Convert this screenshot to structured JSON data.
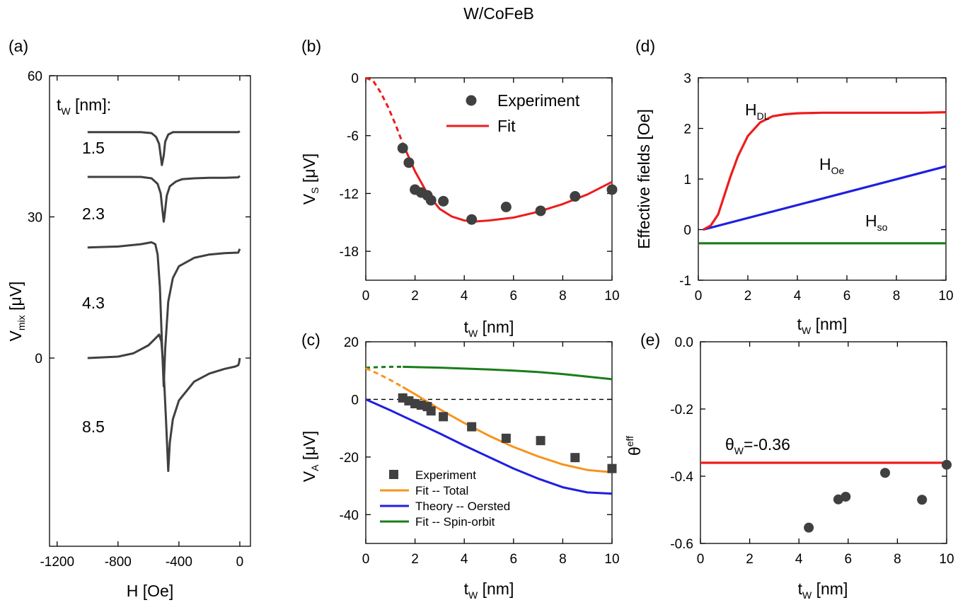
{
  "figure_title": "W/CoFeB",
  "colors": {
    "experiment": "#404040",
    "red": "#ee1c1c",
    "orange": "#f7941d",
    "blue": "#1f1fe0",
    "green": "#1a7d1a",
    "curve_a": "#404040"
  },
  "chart_data": [
    {
      "id": "a",
      "type": "line",
      "panel_label": "(a)",
      "xlabel_main": "H [Oe]",
      "ylabel_main": "V",
      "ylabel_sub": "mix",
      "ylabel_unit": " [μV]",
      "xlim": [
        -1250,
        70
      ],
      "ylim": [
        -40,
        60
      ],
      "xticks": [
        -1200,
        -800,
        -400,
        0
      ],
      "xtick_labels": [
        "-1200",
        "-800",
        "-400",
        "0"
      ],
      "yticks": [
        0,
        30,
        60
      ],
      "ytick_labels": [
        "0",
        "30",
        "60"
      ],
      "header_main": "t",
      "header_sub": "W",
      "header_tail": " [nm]:",
      "series": [
        {
          "label": "1.5",
          "x": [
            -1000,
            -800,
            -650,
            -580,
            -550,
            -530,
            -520,
            -512,
            -500,
            -490,
            -470,
            -440,
            -400,
            -300,
            -200,
            -100,
            -10,
            0
          ],
          "y": [
            48,
            48,
            48,
            47.8,
            47,
            45.5,
            43,
            41,
            43,
            46,
            47.5,
            48,
            48,
            48,
            48,
            48,
            48,
            48.2
          ]
        },
        {
          "label": "2.3",
          "x": [
            -1000,
            -800,
            -650,
            -580,
            -540,
            -520,
            -510,
            -500,
            -495,
            -480,
            -460,
            -420,
            -380,
            -300,
            -200,
            -100,
            -10,
            0
          ],
          "y": [
            38.5,
            38.5,
            38.5,
            38.2,
            37,
            35,
            32,
            29,
            30,
            34.5,
            36.5,
            37.5,
            38,
            38.2,
            38.3,
            38.3,
            38.4,
            38.7
          ]
        },
        {
          "label": "4.3",
          "x": [
            -1000,
            -800,
            -650,
            -580,
            -555,
            -540,
            -525,
            -510,
            -500,
            -490,
            -470,
            -440,
            -400,
            -300,
            -200,
            -100,
            -10,
            0
          ],
          "y": [
            23.5,
            23.7,
            24.2,
            24.6,
            24.2,
            22,
            15,
            2,
            -6,
            2,
            12,
            17,
            19.5,
            21.3,
            22,
            22.3,
            22.4,
            23.2
          ]
        },
        {
          "label": "8.5",
          "x": [
            -1000,
            -800,
            -700,
            -600,
            -560,
            -530,
            -515,
            -500,
            -485,
            -470,
            -460,
            -440,
            -400,
            -300,
            -200,
            -100,
            -30,
            -10,
            -5,
            0
          ],
          "y": [
            0,
            0.3,
            1,
            2.7,
            4,
            5,
            3.5,
            -3,
            -13,
            -24,
            -18,
            -13,
            -9,
            -5,
            -3.3,
            -2.3,
            -1.8,
            -1.5,
            -1,
            0
          ]
        }
      ]
    },
    {
      "id": "b",
      "type": "line",
      "panel_label": "(b)",
      "xlabel_main": "t",
      "xlabel_sub": "W",
      "xlabel_unit": " [nm]",
      "ylabel_main": "V",
      "ylabel_sub": "S",
      "ylabel_unit": " [μV]",
      "xlim": [
        0,
        10
      ],
      "ylim": [
        -21,
        0
      ],
      "xticks": [
        0,
        2,
        4,
        6,
        8,
        10
      ],
      "xtick_labels": [
        "0",
        "2",
        "4",
        "6",
        "8",
        "10"
      ],
      "yticks": [
        0,
        -6,
        -12,
        -18
      ],
      "ytick_labels": [
        "0",
        "-6",
        "-12",
        "-18"
      ],
      "legend": [
        "Experiment",
        "Fit"
      ],
      "experiment": {
        "x": [
          1.5,
          1.75,
          2.0,
          2.25,
          2.5,
          2.65,
          3.15,
          4.3,
          5.7,
          7.1,
          8.5,
          10.0
        ],
        "y": [
          -7.3,
          -8.8,
          -11.6,
          -11.9,
          -12.2,
          -12.7,
          -12.8,
          -14.7,
          -13.4,
          -13.8,
          -12.3,
          -11.6
        ]
      },
      "fit_dashed": {
        "x": [
          0,
          0.3,
          0.6,
          0.9,
          1.2,
          1.5
        ],
        "y": [
          0,
          -0.3,
          -1.5,
          -3.0,
          -4.8,
          -6.8
        ]
      },
      "fit_solid": {
        "x": [
          1.5,
          2.0,
          2.5,
          3.0,
          3.5,
          4.0,
          4.5,
          5.0,
          6.0,
          7.0,
          8.0,
          9.0,
          10.0
        ],
        "y": [
          -6.8,
          -9.7,
          -12.0,
          -13.6,
          -14.4,
          -14.8,
          -14.9,
          -14.8,
          -14.5,
          -13.9,
          -13.1,
          -12.1,
          -10.8
        ]
      }
    },
    {
      "id": "c",
      "type": "line",
      "panel_label": "(c)",
      "xlabel_main": "t",
      "xlabel_sub": "W",
      "xlabel_unit": " [nm]",
      "ylabel_main": "V",
      "ylabel_sub": "A",
      "ylabel_unit": " [μV]",
      "xlim": [
        0,
        10
      ],
      "ylim": [
        -50,
        20
      ],
      "xticks": [
        0,
        2,
        4,
        6,
        8,
        10
      ],
      "xtick_labels": [
        "0",
        "2",
        "4",
        "6",
        "8",
        "10"
      ],
      "yticks": [
        20,
        0,
        -20,
        -40
      ],
      "ytick_labels": [
        "20",
        "0",
        "-20",
        "-40"
      ],
      "legend": [
        "Experiment",
        "Fit -- Total",
        "Theory -- Oersted",
        "Fit -- Spin-orbit"
      ],
      "experiment": {
        "x": [
          1.5,
          1.75,
          2.0,
          2.25,
          2.5,
          2.65,
          3.15,
          4.3,
          5.7,
          7.1,
          8.5,
          10.0
        ],
        "y": [
          0.5,
          -0.5,
          -1.5,
          -2.0,
          -2.5,
          -4.0,
          -6.0,
          -9.5,
          -13.5,
          -14.3,
          -20.2,
          -24.0
        ]
      },
      "total_dashed": {
        "x": [
          0,
          0.5,
          1.0,
          1.5
        ],
        "y": [
          10.8,
          8.9,
          6.7,
          4.3
        ]
      },
      "total_solid": {
        "x": [
          1.5,
          2.0,
          3.0,
          4.0,
          5.0,
          6.0,
          7.0,
          8.0,
          9.0,
          10.0
        ],
        "y": [
          4.3,
          1.8,
          -3.4,
          -8.2,
          -12.6,
          -16.5,
          -19.8,
          -22.6,
          -24.5,
          -25.3
        ]
      },
      "oersted": {
        "x": [
          0,
          1,
          2,
          3,
          4,
          5,
          6,
          7,
          8,
          9,
          10
        ],
        "y": [
          0,
          -3.8,
          -7.8,
          -11.8,
          -16.0,
          -20.0,
          -24.0,
          -27.5,
          -30.5,
          -32.3,
          -32.7
        ]
      },
      "spinorbit_dashed": {
        "x": [
          0,
          0.5,
          1.0,
          1.5
        ],
        "y": [
          11,
          11.2,
          11.3,
          11.3
        ]
      },
      "spinorbit_solid": {
        "x": [
          1.5,
          3,
          4,
          5,
          6,
          7,
          8,
          9,
          10
        ],
        "y": [
          11.3,
          11.0,
          10.7,
          10.4,
          10.0,
          9.5,
          8.8,
          7.9,
          7.0
        ]
      },
      "zero_line": {
        "x": [
          0,
          10
        ],
        "y": [
          0,
          0
        ]
      }
    },
    {
      "id": "d",
      "type": "line",
      "panel_label": "(d)",
      "xlabel_main": "t",
      "xlabel_sub": "W",
      "xlabel_unit": " [nm]",
      "ylabel": "Effective fields [Oe]",
      "xlim": [
        0,
        10
      ],
      "ylim": [
        -1,
        3
      ],
      "xticks": [
        0,
        2,
        4,
        6,
        8,
        10
      ],
      "xtick_labels": [
        "0",
        "2",
        "4",
        "6",
        "8",
        "10"
      ],
      "yticks": [
        3,
        2,
        1,
        0,
        -1
      ],
      "ytick_labels": [
        "3",
        "2",
        "1",
        "0",
        "-1"
      ],
      "annotations": [
        {
          "main": "H",
          "sub": "DL"
        },
        {
          "main": "H",
          "sub": "Oe"
        },
        {
          "main": "H",
          "sub": "so"
        }
      ],
      "H_DL": {
        "x": [
          0.2,
          0.5,
          0.8,
          1.0,
          1.3,
          1.6,
          2.0,
          2.5,
          3.0,
          3.5,
          4.0,
          5.0,
          6.0,
          7.0,
          8.0,
          9.0,
          10.0
        ],
        "y": [
          0,
          0.08,
          0.3,
          0.6,
          1.05,
          1.45,
          1.85,
          2.12,
          2.24,
          2.28,
          2.3,
          2.31,
          2.31,
          2.31,
          2.31,
          2.31,
          2.32
        ]
      },
      "H_Oe": {
        "x": [
          0.2,
          10
        ],
        "y": [
          0,
          1.25
        ]
      },
      "H_so": {
        "x": [
          0,
          10
        ],
        "y": [
          -0.27,
          -0.27
        ]
      }
    },
    {
      "id": "e",
      "type": "scatter",
      "panel_label": "(e)",
      "xlabel_main": "t",
      "xlabel_sub": "W",
      "xlabel_unit": " [nm]",
      "ylabel_main": "θ",
      "ylabel_sup": "eff",
      "xlim": [
        0,
        10
      ],
      "ylim": [
        -0.6,
        0
      ],
      "xticks": [
        0,
        2,
        4,
        6,
        8,
        10
      ],
      "xtick_labels": [
        "0",
        "2",
        "4",
        "6",
        "8",
        "10"
      ],
      "yticks": [
        0.0,
        -0.2,
        -0.4,
        -0.6
      ],
      "ytick_labels": [
        "0.0",
        "-0.2",
        "-0.4",
        "-0.6"
      ],
      "annotation_main": "θ",
      "annotation_sub": "W",
      "annotation_value": "=-0.36",
      "theta_line": {
        "x": [
          0,
          10
        ],
        "y": [
          -0.36,
          -0.36
        ]
      },
      "experiment": {
        "x": [
          4.4,
          5.6,
          5.9,
          7.5,
          9.0,
          10.0
        ],
        "y": [
          -0.553,
          -0.469,
          -0.461,
          -0.39,
          -0.47,
          -0.366
        ]
      }
    }
  ]
}
